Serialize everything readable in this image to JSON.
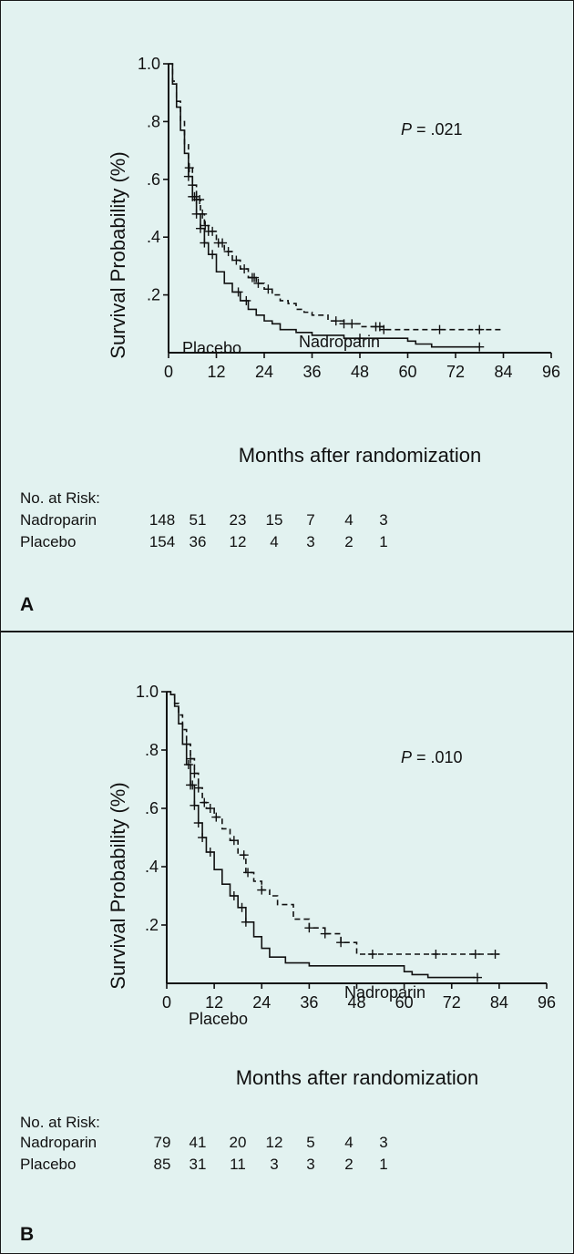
{
  "chart_data": [
    {
      "type": "line",
      "panel": "A",
      "xlabel": "Months after randomization",
      "ylabel": "Survival Probability (%)",
      "xlim": [
        0,
        96
      ],
      "ylim": [
        0,
        1.0
      ],
      "x_ticks": [
        "0",
        "12",
        "24",
        "36",
        "48",
        "60",
        "72",
        "84",
        "96"
      ],
      "y_ticks": [
        "1.0",
        ".8",
        ".6",
        ".4",
        ".2"
      ],
      "annotation": {
        "prefix": "P",
        "text": " = .021"
      },
      "series": [
        {
          "name": "Nadroparin",
          "style": "dashed",
          "x": [
            0,
            1,
            2,
            3,
            4,
            5,
            6,
            7,
            8,
            9,
            10,
            12,
            14,
            16,
            18,
            20,
            22,
            24,
            26,
            28,
            30,
            32,
            34,
            36,
            40,
            44,
            48,
            54,
            84
          ],
          "y": [
            1.0,
            0.94,
            0.87,
            0.8,
            0.72,
            0.64,
            0.58,
            0.53,
            0.48,
            0.44,
            0.42,
            0.38,
            0.35,
            0.32,
            0.29,
            0.26,
            0.24,
            0.22,
            0.2,
            0.18,
            0.17,
            0.15,
            0.14,
            0.13,
            0.11,
            0.1,
            0.09,
            0.08,
            0.08
          ],
          "censor_x": [
            5.2,
            6,
            7,
            7.8,
            8.5,
            9.2,
            10,
            11,
            12.5,
            13.5,
            15,
            17,
            19,
            21,
            21.5,
            22.5,
            25,
            42,
            44,
            46,
            52,
            53,
            54,
            68,
            78
          ]
        },
        {
          "name": "Placebo",
          "style": "solid",
          "x": [
            0,
            1,
            2,
            3,
            4,
            5,
            6,
            7,
            8,
            9,
            10,
            12,
            14,
            16,
            18,
            20,
            22,
            24,
            26,
            28,
            32,
            36,
            40,
            44,
            50,
            56,
            60,
            62,
            66,
            78
          ],
          "y": [
            1.0,
            0.93,
            0.85,
            0.77,
            0.69,
            0.61,
            0.54,
            0.48,
            0.43,
            0.38,
            0.34,
            0.28,
            0.24,
            0.21,
            0.18,
            0.15,
            0.13,
            0.11,
            0.1,
            0.08,
            0.07,
            0.06,
            0.06,
            0.05,
            0.05,
            0.05,
            0.04,
            0.03,
            0.02,
            0.02
          ],
          "censor_x": [
            5,
            6,
            6.5,
            7,
            8,
            9,
            11,
            17.5,
            19.5,
            48,
            78
          ]
        }
      ],
      "series_labels": [
        "Nadroparin",
        "Placebo"
      ],
      "risk_table": {
        "heading": "No. at Risk:",
        "rows": [
          {
            "label": "Nadroparin",
            "values": [
              "148",
              "51",
              "23",
              "15",
              "7",
              "4",
              "3"
            ]
          },
          {
            "label": "Placebo",
            "values": [
              "154",
              "36",
              "12",
              "4",
              "3",
              "2",
              "1"
            ]
          }
        ]
      },
      "panel_label": "A"
    },
    {
      "type": "line",
      "panel": "B",
      "xlabel": "Months after randomization",
      "ylabel": "Survival Probability (%)",
      "xlim": [
        0,
        96
      ],
      "ylim": [
        0,
        1.0
      ],
      "x_ticks": [
        "0",
        "12",
        "24",
        "36",
        "48",
        "60",
        "72",
        "84",
        "96"
      ],
      "y_ticks": [
        "1.0",
        ".8",
        ".6",
        ".4",
        ".2"
      ],
      "annotation": {
        "prefix": "P",
        "text": " = .010"
      },
      "series": [
        {
          "name": "Nadroparin",
          "style": "dashed",
          "x": [
            0,
            1,
            2,
            3,
            4,
            5,
            6,
            7,
            8,
            9,
            10,
            12,
            14,
            16,
            18,
            20,
            22,
            24,
            26,
            28,
            32,
            36,
            40,
            44,
            48,
            84
          ],
          "y": [
            1.0,
            0.99,
            0.96,
            0.92,
            0.87,
            0.82,
            0.77,
            0.72,
            0.67,
            0.62,
            0.6,
            0.57,
            0.53,
            0.49,
            0.44,
            0.38,
            0.35,
            0.32,
            0.3,
            0.27,
            0.22,
            0.19,
            0.17,
            0.14,
            0.1,
            0.1
          ],
          "censor_x": [
            5,
            6,
            7,
            8,
            9.5,
            11,
            12.5,
            17,
            19.5,
            20.5,
            24,
            36,
            40,
            44,
            52,
            68,
            78,
            83
          ]
        },
        {
          "name": "Placebo",
          "style": "solid",
          "x": [
            0,
            1,
            2,
            3,
            4,
            5,
            6,
            7,
            8,
            9,
            10,
            12,
            14,
            16,
            18,
            20,
            22,
            24,
            26,
            30,
            36,
            48,
            60,
            62,
            66,
            78
          ],
          "y": [
            1.0,
            0.99,
            0.95,
            0.89,
            0.82,
            0.75,
            0.68,
            0.61,
            0.55,
            0.5,
            0.45,
            0.39,
            0.34,
            0.3,
            0.26,
            0.21,
            0.16,
            0.12,
            0.09,
            0.07,
            0.06,
            0.06,
            0.04,
            0.03,
            0.02,
            0.02
          ],
          "censor_x": [
            5.5,
            6,
            6.5,
            7,
            8,
            9,
            11,
            17,
            19,
            20,
            78.5
          ]
        }
      ],
      "series_labels": [
        "Nadroparin",
        "Placebo"
      ],
      "risk_table": {
        "heading": "No. at Risk:",
        "rows": [
          {
            "label": "Nadroparin",
            "values": [
              "79",
              "41",
              "20",
              "12",
              "5",
              "4",
              "3"
            ]
          },
          {
            "label": "Placebo",
            "values": [
              "85",
              "31",
              "11",
              "3",
              "3",
              "2",
              "1"
            ]
          }
        ]
      },
      "panel_label": "B"
    }
  ]
}
